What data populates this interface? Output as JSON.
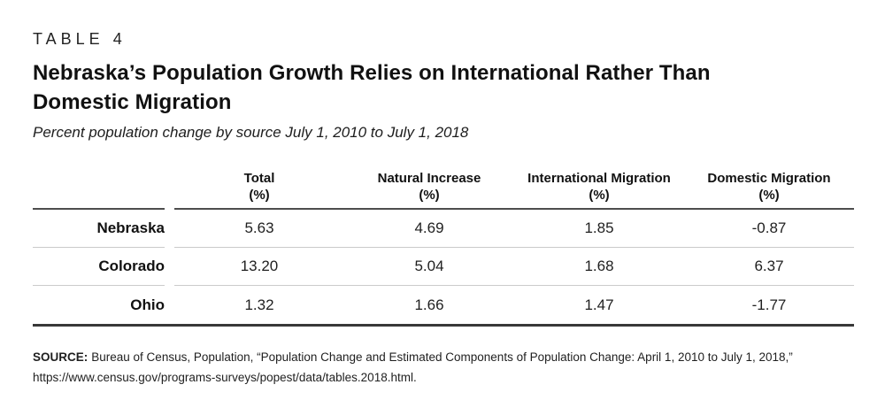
{
  "figure": {
    "kicker": "TABLE 4",
    "title_line1": "Nebraska’s Population Growth Relies on International Rather Than",
    "title_line2": "Domestic Migration",
    "subtitle": "Percent population change by source July 1, 2010 to July 1, 2018",
    "source_label": "SOURCE:",
    "source_text": "Bureau of Census, Population, “Population Change and Estimated Components of Population Change: April 1, 2010 to July 1, 2018,”",
    "source_url": "https://www.census.gov/programs-surveys/popest/data/tables.2018.html.",
    "colors": {
      "text": "#1d1d1d",
      "header_rule": "#4d4d4d",
      "row_rule": "#cbcbcb",
      "bottom_rule": "#383838"
    }
  },
  "chart_data": {
    "type": "table",
    "title": "Nebraska’s Population Growth Relies on International Rather Than Domestic Migration",
    "subtitle": "Percent population change by source July 1, 2010 to July 1, 2018",
    "columns": [
      {
        "label": "Total",
        "unit": "(%)"
      },
      {
        "label": "Natural Increase",
        "unit": "(%)"
      },
      {
        "label": "International Migration",
        "unit": "(%)"
      },
      {
        "label": "Domestic Migration",
        "unit": "(%)"
      }
    ],
    "rows": [
      {
        "label": "Nebraska",
        "values": [
          "5.63",
          "4.69",
          "1.85",
          "-0.87"
        ]
      },
      {
        "label": "Colorado",
        "values": [
          "13.20",
          "5.04",
          "1.68",
          "6.37"
        ]
      },
      {
        "label": "Ohio",
        "values": [
          "1.32",
          "1.66",
          "1.47",
          "-1.77"
        ]
      }
    ]
  }
}
